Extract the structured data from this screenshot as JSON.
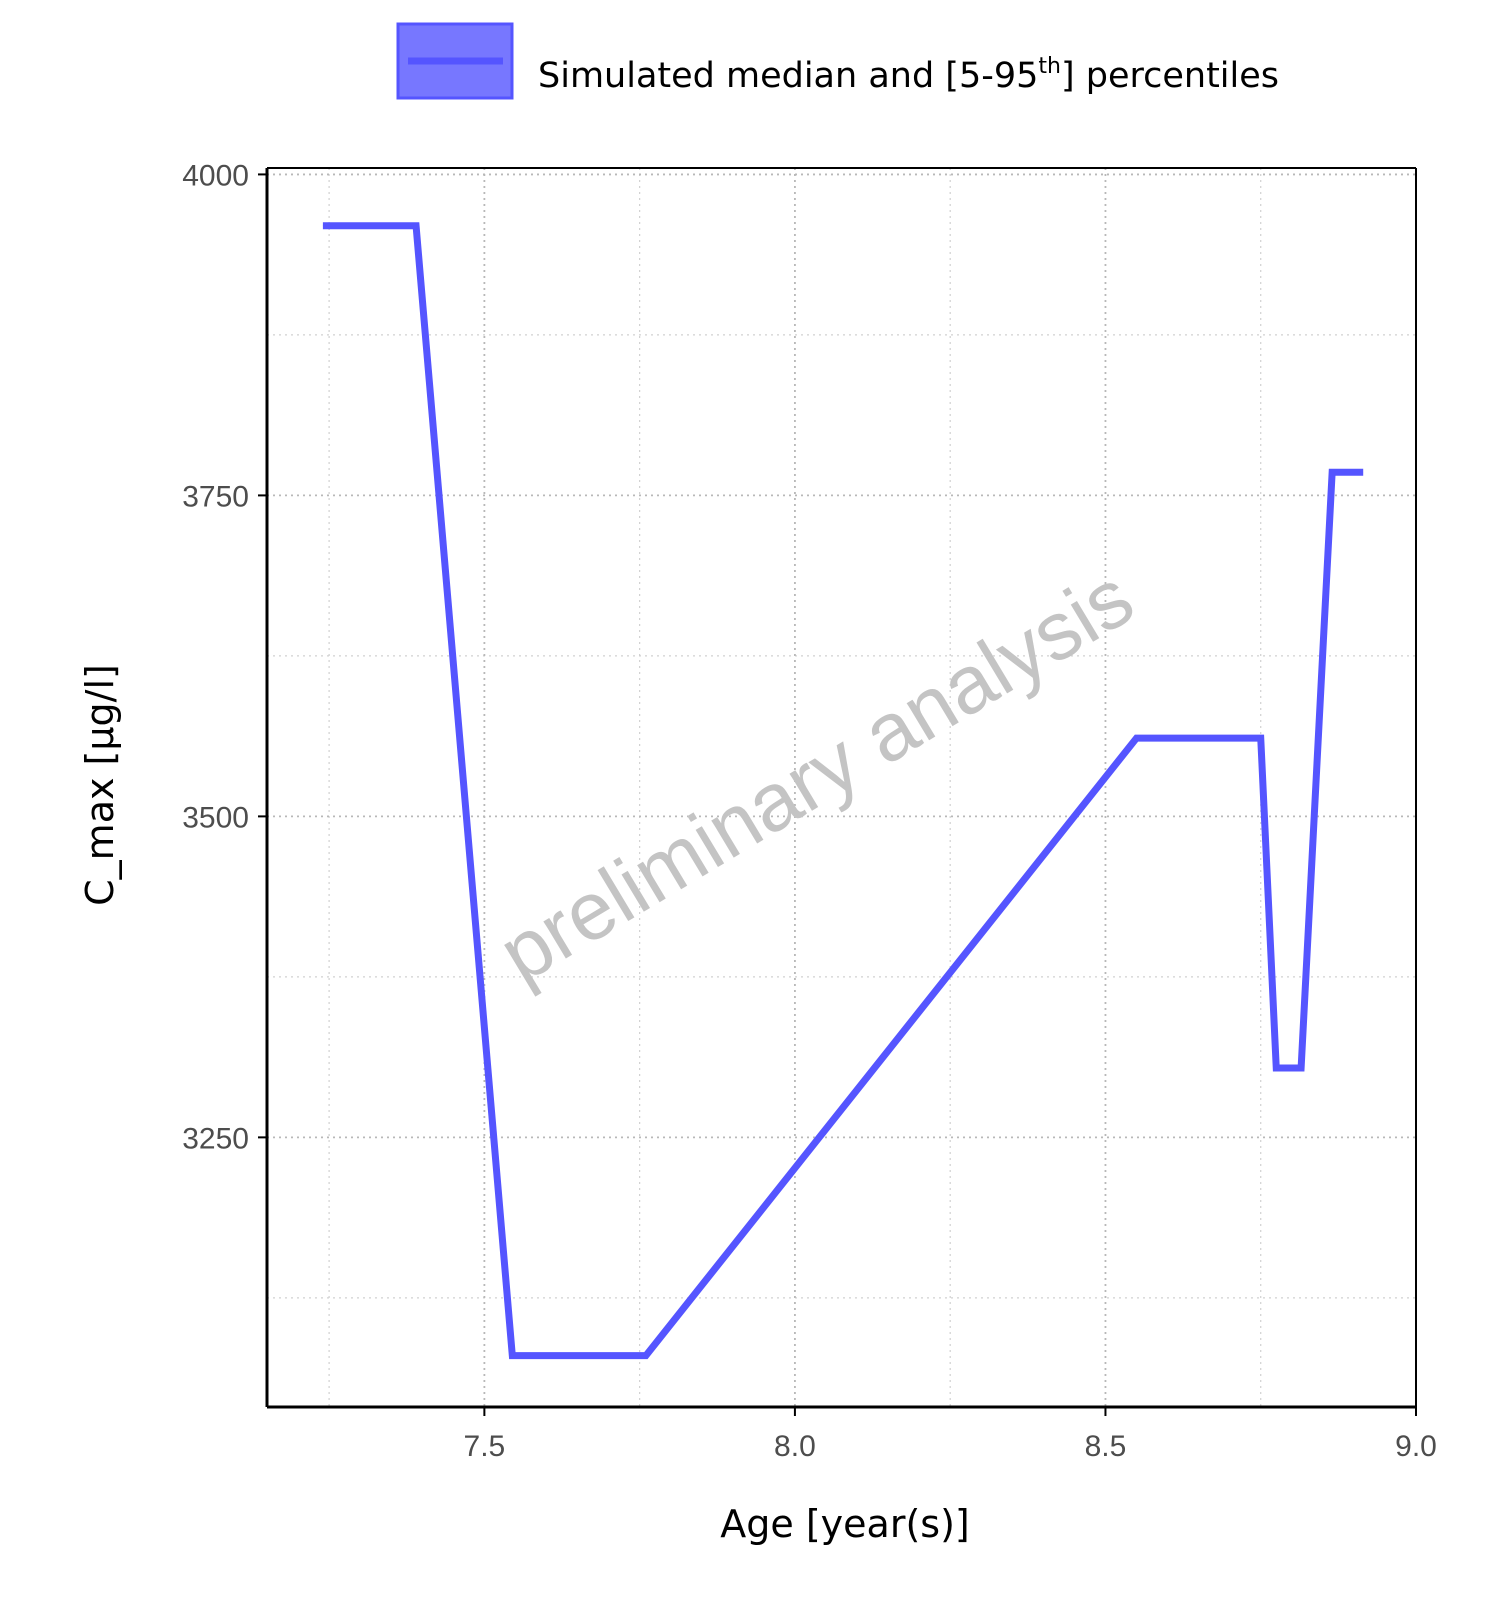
{
  "colors": {
    "series": "#5555ff",
    "ribbon": "#7777ff",
    "grid": "#d0d0d0",
    "axis": "#000000",
    "tick_text": "#4d4d4d",
    "watermark": "#c4c4c4"
  },
  "chart_data": {
    "type": "line",
    "title": "",
    "xlabel": "Age [year(s)]",
    "ylabel": "C_max [µg/l]",
    "xlim": [
      7.15,
      9.0
    ],
    "ylim": [
      3040,
      4005
    ],
    "x_ticks": [
      7.5,
      8.0,
      8.5,
      9.0
    ],
    "x_tick_labels": [
      "7.5",
      "8.0",
      "8.5",
      "9.0"
    ],
    "y_ticks": [
      3250,
      3500,
      3750,
      4000
    ],
    "y_tick_labels": [
      "3250",
      "3500",
      "3750",
      "4000"
    ],
    "x_minor_ticks": [
      7.25,
      7.75,
      8.25,
      8.75
    ],
    "y_minor_ticks": [
      3125,
      3375,
      3625,
      3875
    ],
    "grid": true,
    "legend_position": "top",
    "legend": {
      "label_main": "Simulated median and [5-95",
      "label_sup": "th",
      "label_end": "] percentiles"
    },
    "watermark": "preliminary analysis",
    "series": [
      {
        "name": "Simulated median and [5-95th] percentiles",
        "x": [
          7.24,
          7.39,
          7.545,
          7.76,
          8.55,
          8.75,
          8.775,
          8.815,
          8.865,
          8.915
        ],
        "y": [
          3960,
          3960,
          3080,
          3080,
          3561,
          3561,
          3304,
          3304,
          3768,
          3768
        ],
        "y_low": [
          3960,
          3960,
          3080,
          3080,
          3561,
          3561,
          3304,
          3304,
          3768,
          3768
        ],
        "y_high": [
          3960,
          3960,
          3080,
          3080,
          3561,
          3561,
          3304,
          3304,
          3768,
          3768
        ]
      }
    ]
  }
}
